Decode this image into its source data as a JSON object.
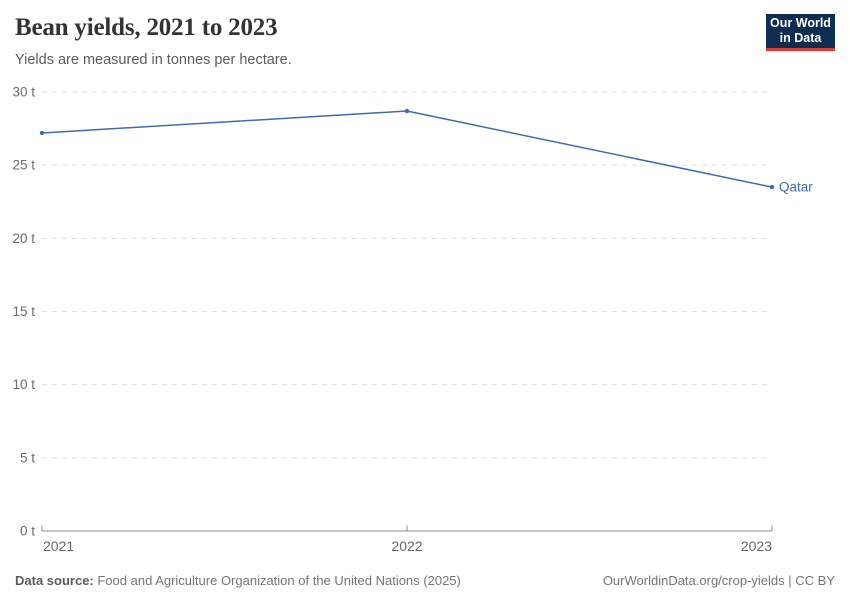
{
  "header": {
    "title": "Bean yields, 2021 to 2023",
    "subtitle": "Yields are measured in tonnes per hectare.",
    "logo": {
      "line1": "Our World",
      "line2": "in Data",
      "bg_color": "#0d2d51",
      "accent_color": "#dc3a33"
    }
  },
  "chart_data": {
    "type": "line",
    "title": "Bean yields, 2021 to 2023",
    "x": [
      2021,
      2022,
      2023
    ],
    "x_tick_labels": [
      "2021",
      "2022",
      "2023"
    ],
    "series": [
      {
        "name": "Qatar",
        "values": [
          27.2,
          28.7,
          23.5
        ],
        "color": "#3d6cb3"
      }
    ],
    "unit_suffix": " t",
    "y_ticks": [
      0,
      5,
      10,
      15,
      20,
      25,
      30
    ],
    "ylim": [
      0,
      30
    ],
    "grid": "horizontal-dashed",
    "legend_position": "right-of-line",
    "grid_color": "#dedede",
    "axis_color": "#8f8f8f",
    "tick_label_color": "#6b6b6b"
  },
  "footer": {
    "source_label": "Data source:",
    "source_text": " Food and Agriculture Organization of the United Nations (2025)",
    "link_text": "OurWorldinData.org/crop-yields",
    "separator": " | ",
    "license": "CC BY"
  }
}
